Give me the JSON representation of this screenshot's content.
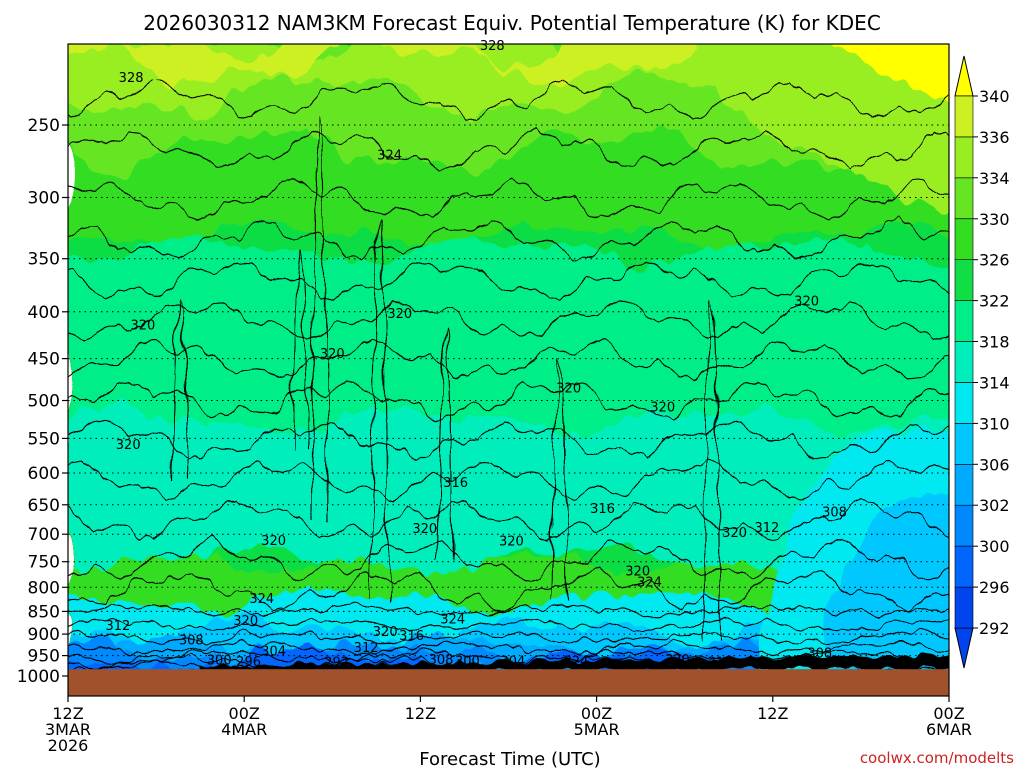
{
  "chart_data": {
    "type": "heatmap",
    "title": "2026030312 NAM3KM Forecast Equiv. Potential Temperature (K) for KDEC",
    "xlabel": "Forecast Time (UTC)",
    "ylabel": "",
    "credit": "coolwx.com/modelts",
    "x_ticks": [
      {
        "label": "12Z",
        "sub": [
          "3MAR",
          "2026"
        ],
        "hours": 0
      },
      {
        "label": "00Z",
        "sub": [
          "4MAR"
        ],
        "hours": 12
      },
      {
        "label": "12Z",
        "sub": [],
        "hours": 24
      },
      {
        "label": "00Z",
        "sub": [
          "5MAR"
        ],
        "hours": 36
      },
      {
        "label": "12Z",
        "sub": [],
        "hours": 48
      },
      {
        "label": "00Z",
        "sub": [
          "6MAR"
        ],
        "hours": 60
      }
    ],
    "x_range_hours": [
      0,
      60
    ],
    "y_ticks": [
      250,
      300,
      350,
      400,
      450,
      500,
      550,
      600,
      650,
      700,
      750,
      800,
      850,
      900,
      950,
      1000
    ],
    "y_range_hpa": [
      200,
      1000
    ],
    "y_scale": "log-pressure",
    "surface_pressure_hpa": 983,
    "colorbar": {
      "levels": [
        292,
        296,
        300,
        302,
        306,
        310,
        314,
        318,
        322,
        326,
        330,
        334,
        336,
        340
      ],
      "label_levels": [
        "292",
        "296",
        "300",
        "302",
        "306",
        "310",
        "314",
        "318",
        "322",
        "326",
        "330",
        "334",
        "336",
        "340"
      ],
      "colors": [
        "#0044ee",
        "#0066ff",
        "#0088ff",
        "#00aaff",
        "#00c8ff",
        "#00e8f0",
        "#00eebb",
        "#00ee88",
        "#11dd44",
        "#33dd22",
        "#66e622",
        "#99ee22",
        "#ccf022",
        "#ffff00"
      ]
    },
    "contour_labels": [
      {
        "value": "328",
        "hours": 4.3,
        "p": 222
      },
      {
        "value": "328",
        "hours": 28.9,
        "p": 205
      },
      {
        "value": "324",
        "hours": 21.9,
        "p": 270
      },
      {
        "value": "320",
        "hours": 5.1,
        "p": 414
      },
      {
        "value": "320",
        "hours": 22.6,
        "p": 402
      },
      {
        "value": "320",
        "hours": 18.0,
        "p": 445
      },
      {
        "value": "320",
        "hours": 4.1,
        "p": 559
      },
      {
        "value": "320",
        "hours": 34.1,
        "p": 485
      },
      {
        "value": "320",
        "hours": 40.5,
        "p": 509
      },
      {
        "value": "320",
        "hours": 50.3,
        "p": 390
      },
      {
        "value": "316",
        "hours": 26.4,
        "p": 615
      },
      {
        "value": "316",
        "hours": 36.4,
        "p": 657
      },
      {
        "value": "308",
        "hours": 52.2,
        "p": 663
      },
      {
        "value": "312",
        "hours": 47.6,
        "p": 689
      },
      {
        "value": "320",
        "hours": 45.4,
        "p": 698
      },
      {
        "value": "320",
        "hours": 24.3,
        "p": 691
      },
      {
        "value": "320",
        "hours": 30.2,
        "p": 713
      },
      {
        "value": "320",
        "hours": 14.0,
        "p": 712
      },
      {
        "value": "320",
        "hours": 38.8,
        "p": 769
      },
      {
        "value": "324",
        "hours": 39.6,
        "p": 790
      },
      {
        "value": "324",
        "hours": 13.2,
        "p": 824
      },
      {
        "value": "320",
        "hours": 12.1,
        "p": 871
      },
      {
        "value": "324",
        "hours": 26.2,
        "p": 868
      },
      {
        "value": "320",
        "hours": 21.6,
        "p": 895
      },
      {
        "value": "316",
        "hours": 23.4,
        "p": 904
      },
      {
        "value": "312",
        "hours": 3.4,
        "p": 882
      },
      {
        "value": "308",
        "hours": 8.4,
        "p": 915
      },
      {
        "value": "312",
        "hours": 20.3,
        "p": 932
      },
      {
        "value": "304",
        "hours": 14.0,
        "p": 940
      },
      {
        "value": "300",
        "hours": 10.3,
        "p": 962
      },
      {
        "value": "296",
        "hours": 12.3,
        "p": 965
      },
      {
        "value": "292",
        "hours": 18.3,
        "p": 967
      },
      {
        "value": "308",
        "hours": 25.4,
        "p": 960
      },
      {
        "value": "300",
        "hours": 27.2,
        "p": 964
      },
      {
        "value": "304",
        "hours": 30.3,
        "p": 964
      },
      {
        "value": "324",
        "hours": 34.6,
        "p": 964
      },
      {
        "value": "320",
        "hours": 41.5,
        "p": 960
      },
      {
        "value": "316",
        "hours": 44.4,
        "p": 966
      },
      {
        "value": "308",
        "hours": 51.2,
        "p": 945
      }
    ]
  }
}
